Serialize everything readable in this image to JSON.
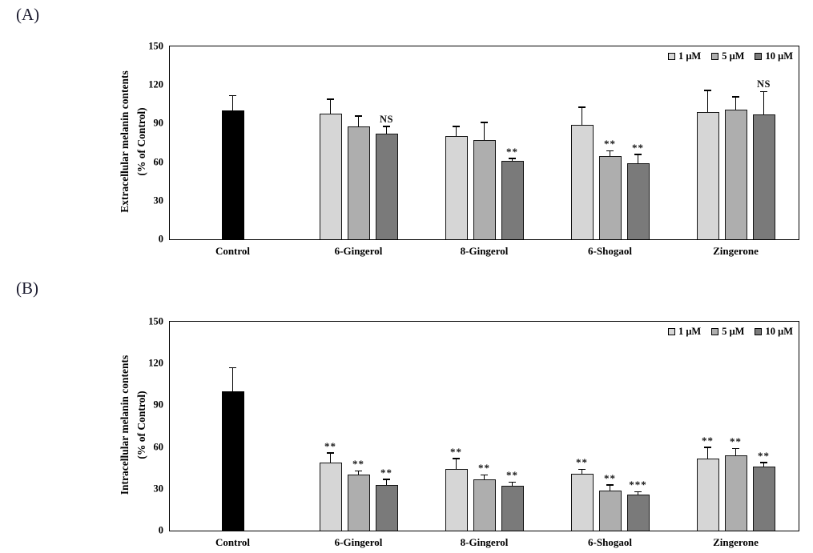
{
  "figure": {
    "background": "#ffffff"
  },
  "panels": [
    {
      "tag": "(A)",
      "ylabel_line1": "Extracellular melanin contents",
      "ylabel_line2": "(% of Control)"
    },
    {
      "tag": "(B)",
      "ylabel_line1": "Intracellular melanin contents",
      "ylabel_line2": "(% of Control)"
    }
  ],
  "legend": {
    "items": [
      {
        "label": "1 μM",
        "color": "#d6d6d6"
      },
      {
        "label": "5 μM",
        "color": "#aeaeae"
      },
      {
        "label": "10 μM",
        "color": "#7a7a7a"
      }
    ]
  },
  "series_colors": {
    "Control": "#000000",
    "1 μM": "#d6d6d6",
    "5 μM": "#aeaeae",
    "10 μM": "#7a7a7a"
  },
  "chart_data": [
    {
      "type": "bar",
      "panel": "A",
      "title": "",
      "xlabel": "",
      "ylabel": "Extracellular melanin contents (% of Control)",
      "ylim": [
        0,
        150
      ],
      "yticks": [
        0,
        30,
        60,
        90,
        120,
        150
      ],
      "grid": false,
      "legend_position": "top-right",
      "series_names": [
        "1 μM",
        "5 μM",
        "10 μM"
      ],
      "categories": [
        "Control",
        "6-Gingerol",
        "8-Gingerol",
        "6-Shogaol",
        "Zingerone"
      ],
      "groups": [
        {
          "label": "Control",
          "bars": [
            {
              "series": "Control",
              "value": 100,
              "error": 12,
              "marker": "",
              "color": "#000000"
            }
          ]
        },
        {
          "label": "6-Gingerol",
          "bars": [
            {
              "series": "1 μM",
              "value": 98,
              "error": 11,
              "marker": ""
            },
            {
              "series": "5 μM",
              "value": 88,
              "error": 8,
              "marker": ""
            },
            {
              "series": "10 μM",
              "value": 82,
              "error": 6,
              "marker": "NS"
            }
          ]
        },
        {
          "label": "8-Gingerol",
          "bars": [
            {
              "series": "1 μM",
              "value": 80,
              "error": 8,
              "marker": ""
            },
            {
              "series": "5 μM",
              "value": 77,
              "error": 14,
              "marker": ""
            },
            {
              "series": "10 μM",
              "value": 61,
              "error": 2,
              "marker": "**"
            }
          ]
        },
        {
          "label": "6-Shogaol",
          "bars": [
            {
              "series": "1 μM",
              "value": 89,
              "error": 14,
              "marker": ""
            },
            {
              "series": "5 μM",
              "value": 65,
              "error": 4,
              "marker": "**"
            },
            {
              "series": "10 μM",
              "value": 59,
              "error": 7,
              "marker": "**"
            }
          ]
        },
        {
          "label": "Zingerone",
          "bars": [
            {
              "series": "1 μM",
              "value": 99,
              "error": 17,
              "marker": ""
            },
            {
              "series": "5 μM",
              "value": 101,
              "error": 10,
              "marker": ""
            },
            {
              "series": "10 μM",
              "value": 97,
              "error": 18,
              "marker": "NS"
            }
          ]
        }
      ]
    },
    {
      "type": "bar",
      "panel": "B",
      "title": "",
      "xlabel": "",
      "ylabel": "Intracellular melanin contents (% of Control)",
      "ylim": [
        0,
        150
      ],
      "yticks": [
        0,
        30,
        60,
        90,
        120,
        150
      ],
      "grid": false,
      "legend_position": "top-right",
      "series_names": [
        "1 μM",
        "5 μM",
        "10 μM"
      ],
      "categories": [
        "Control",
        "6-Gingerol",
        "8-Gingerol",
        "6-Shogaol",
        "Zingerone"
      ],
      "groups": [
        {
          "label": "Control",
          "bars": [
            {
              "series": "Control",
              "value": 100,
              "error": 17,
              "marker": "",
              "color": "#000000"
            }
          ]
        },
        {
          "label": "6-Gingerol",
          "bars": [
            {
              "series": "1 μM",
              "value": 49,
              "error": 7,
              "marker": "**"
            },
            {
              "series": "5 μM",
              "value": 40,
              "error": 3,
              "marker": "**"
            },
            {
              "series": "10 μM",
              "value": 33,
              "error": 4,
              "marker": "**"
            }
          ]
        },
        {
          "label": "8-Gingerol",
          "bars": [
            {
              "series": "1 μM",
              "value": 44,
              "error": 8,
              "marker": "**"
            },
            {
              "series": "5 μM",
              "value": 37,
              "error": 3,
              "marker": "**"
            },
            {
              "series": "10 μM",
              "value": 32,
              "error": 3,
              "marker": "**"
            }
          ]
        },
        {
          "label": "6-Shogaol",
          "bars": [
            {
              "series": "1 μM",
              "value": 41,
              "error": 3,
              "marker": "**"
            },
            {
              "series": "5 μM",
              "value": 29,
              "error": 4,
              "marker": "**"
            },
            {
              "series": "10 μM",
              "value": 26,
              "error": 2,
              "marker": "***"
            }
          ]
        },
        {
          "label": "Zingerone",
          "bars": [
            {
              "series": "1 μM",
              "value": 52,
              "error": 8,
              "marker": "**"
            },
            {
              "series": "5 μM",
              "value": 54,
              "error": 5,
              "marker": "**"
            },
            {
              "series": "10 μM",
              "value": 46,
              "error": 3,
              "marker": "**"
            }
          ]
        }
      ]
    }
  ]
}
